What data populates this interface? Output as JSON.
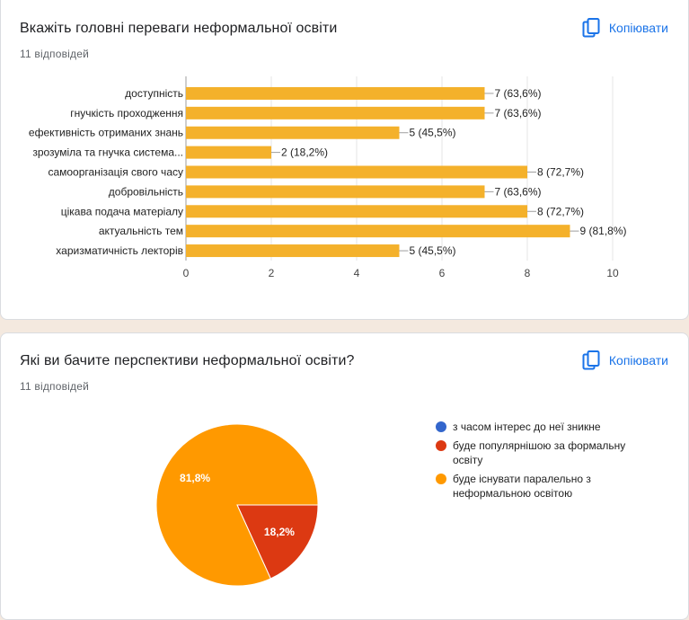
{
  "question1": {
    "title": "Вкажіть головні переваги неформальної освіти",
    "responses": "11 відповідей",
    "copy_label": "Копіювати"
  },
  "question2": {
    "title": "Які ви бачите перспективи неформальної освіти?",
    "responses": "11 відповідей",
    "copy_label": "Копіювати"
  },
  "icons": {
    "copy": "copy-icon"
  },
  "colors": {
    "bar": "#f4b12b",
    "link": "#1a73e8",
    "pie_blue": "#3366cc",
    "pie_red": "#dc3912",
    "pie_orange": "#ff9900"
  },
  "chart_data": [
    {
      "type": "bar",
      "orientation": "horizontal",
      "categories": [
        "доступність",
        "гнучкість проходження",
        "ефективність отриманих знань",
        "зрозуміла та гнучка система...",
        "самоорганізація свого часу",
        "добровільність",
        "цікава подача матеріалу",
        "актуальність тем",
        "харизматичність лекторів"
      ],
      "values": [
        7,
        7,
        5,
        2,
        8,
        7,
        8,
        9,
        5
      ],
      "data_labels": [
        "7 (63,6%)",
        "7 (63,6%)",
        "5 (45,5%)",
        "2 (18,2%)",
        "8 (72,7%)",
        "7 (63,6%)",
        "8 (72,7%)",
        "9 (81,8%)",
        "5 (45,5%)"
      ],
      "xlim": [
        0,
        10
      ],
      "xticks": [
        0,
        2,
        4,
        6,
        8,
        10
      ],
      "grid": true
    },
    {
      "type": "pie",
      "labels": [
        "з часом інтерес до неї зникне",
        "буде популярнішою за формальну освіту",
        "буде існувати паралельно з неформальною освітою"
      ],
      "legend_lines": [
        [
          "з часом інтерес до неї зникне"
        ],
        [
          "буде популярнішою за формальну",
          "освіту"
        ],
        [
          "буде існувати паралельно з",
          "неформальною освітою"
        ]
      ],
      "values": [
        0,
        18.2,
        81.8
      ],
      "slice_labels": [
        "",
        "18,2%",
        "81,8%"
      ],
      "legend_position": "right"
    }
  ]
}
